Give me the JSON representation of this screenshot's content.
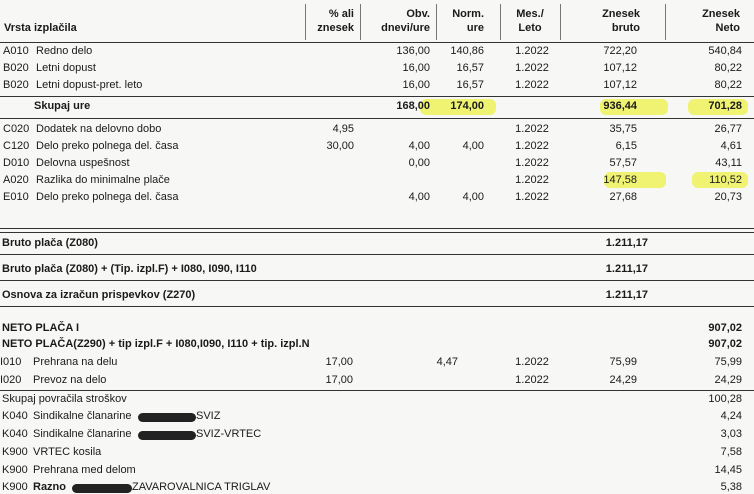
{
  "header": {
    "columns": [
      {
        "lines": [
          "Vrsta izplačila"
        ]
      },
      {
        "lines": [
          "% ali",
          "znesek"
        ]
      },
      {
        "lines": [
          "Obv.",
          "dnevi/ure"
        ]
      },
      {
        "lines": [
          "Norm.",
          "ure"
        ]
      },
      {
        "lines": [
          "Mes./",
          "Leto"
        ]
      },
      {
        "lines": [
          "Znesek",
          "bruto"
        ]
      },
      {
        "lines": [
          "Znesek",
          "Neto"
        ]
      }
    ]
  },
  "earnings": [
    {
      "code": "A010",
      "name": "Redno delo",
      "days": "136,00",
      "norm": "140,86",
      "period": "1.2022",
      "gross": "722,20",
      "net": "540,84"
    },
    {
      "code": "B020",
      "name": "Letni dopust",
      "days": "16,00",
      "norm": "16,57",
      "period": "1.2022",
      "gross": "107,12",
      "net": "80,22"
    },
    {
      "code": "B020",
      "name": "Letni dopust-pret. leto",
      "days": "16,00",
      "norm": "16,57",
      "period": "1.2022",
      "gross": "107,12",
      "net": "80,22"
    },
    {
      "name": "Skupaj ure",
      "days": "168,00",
      "norm": "174,00",
      "gross": "936,44",
      "net": "701,28"
    },
    {
      "code": "C020",
      "name": "Dodatek na delovno dobo",
      "percent": "4,95",
      "period": "1.2022",
      "gross": "35,75",
      "net": "26,77"
    },
    {
      "code": "C120",
      "name": "Delo preko polnega del. časa",
      "percent": "30,00",
      "days": "4,00",
      "norm": "4,00",
      "period": "1.2022",
      "gross": "6,15",
      "net": "4,61"
    },
    {
      "code": "D010",
      "name": "Delovna uspešnost",
      "days": "0,00",
      "period": "1.2022",
      "gross": "57,57",
      "net": "43,11"
    },
    {
      "code": "A020",
      "name": "Razlika do minimalne plače",
      "period": "1.2022",
      "gross": "147,58",
      "net": "110,52"
    },
    {
      "code": "E010",
      "name": "Delo preko polnega del. časa",
      "days": "4,00",
      "norm": "4,00",
      "period": "1.2022",
      "gross": "27,68",
      "net": "20,73"
    }
  ],
  "totals": [
    {
      "label": "Bruto plača (Z080)",
      "gross": "1.211,17"
    },
    {
      "label": "Bruto plača (Z080) + (Tip. izpl.F) + I080, I090, I110",
      "gross": "1.211,17"
    },
    {
      "label": "Osnova za izračun prispevkov (Z270)",
      "gross": "1.211,17"
    }
  ],
  "net": [
    {
      "label": "NETO PLAČA I",
      "net": "907,02"
    },
    {
      "label": "NETO PLAČA(Z290) + tip izpl.F + I080,I090, I110 + tip. izpl.N",
      "net": "907,02"
    }
  ],
  "reimbursements": [
    {
      "code": "I010",
      "name": "Prehrana na delu",
      "days": "17,00",
      "price": "4,47",
      "period": "1.2022",
      "gross": "75,99",
      "net": "75,99"
    },
    {
      "code": "I020",
      "name": "Prevoz na delo",
      "days": "17,00",
      "period": "1.2022",
      "gross": "24,29",
      "net": "24,29"
    }
  ],
  "reimbursement_total": {
    "label": "Skupaj povračila stroškov",
    "net": "100,28"
  },
  "deductions": [
    {
      "code": "K040",
      "name": "Sindikalne članarine",
      "suffix": "SVIZ",
      "net": "4,24"
    },
    {
      "code": "K040",
      "name": "Sindikalne članarine",
      "suffix": "SVIZ-VRTEC",
      "net": "3,03"
    },
    {
      "code": "K900",
      "name": "VRTEC kosila",
      "net": "7,58"
    },
    {
      "code": "K900",
      "name": "Prehrana med delom",
      "net": "14,45"
    },
    {
      "code": "K900",
      "name": "Razno",
      "suffix": "ZAVAROVALNICA TRIGLAV",
      "net": "5,38"
    }
  ]
}
